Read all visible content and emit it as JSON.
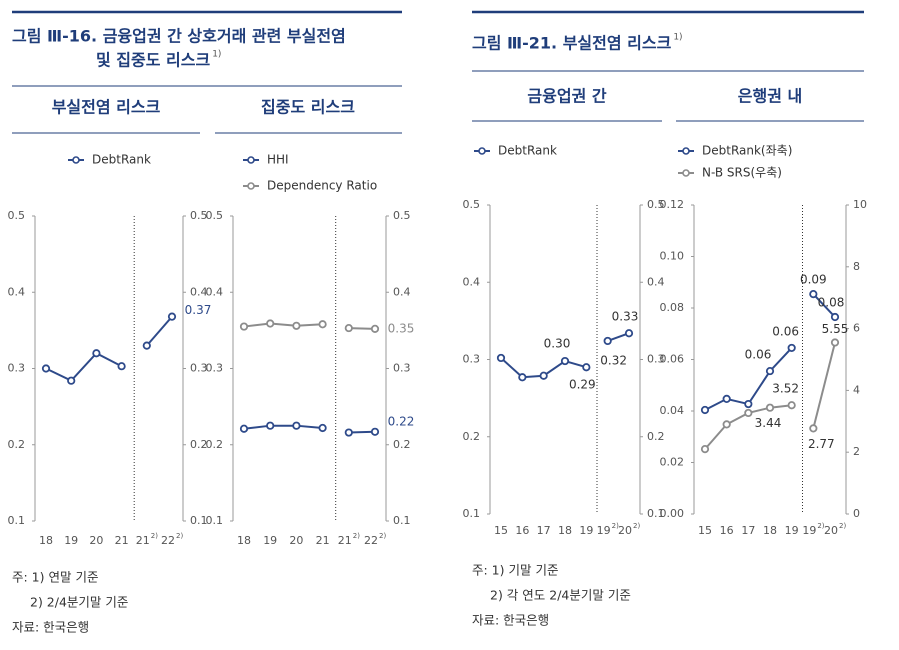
{
  "figures": [
    {
      "title_lines": [
        "그림 Ⅲ-16. 금융업권 간 상호거래 관련 부실전염",
        "및 집중도 리스크"
      ],
      "title_note": "1)",
      "notes": [
        "주: 1) 연말 기준",
        "2) 2/4분기말 기준",
        "자료: 한국은행"
      ]
    },
    {
      "title_lines": [
        "그림 Ⅲ-21. 부실전염 리스크"
      ],
      "title_note": "1)",
      "notes": [
        "주: 1) 기말 기준",
        "2) 각 연도 2/4분기말 기준",
        "자료: 한국은행"
      ]
    }
  ],
  "chart_data": [
    {
      "type": "line",
      "title": "부실전염 리스크",
      "categories": [
        "18",
        "19",
        "20",
        "21",
        "21",
        "22"
      ],
      "category_notes": [
        null,
        null,
        null,
        null,
        "2)",
        "2)"
      ],
      "divider_after": 3,
      "ylim": [
        0.1,
        0.5
      ],
      "yticks": [
        0.1,
        0.2,
        0.3,
        0.4,
        0.5
      ],
      "y2lim": [
        0.1,
        0.5
      ],
      "y2ticks": [
        0.1,
        0.2,
        0.3,
        0.4,
        0.5
      ],
      "series": [
        {
          "name": "DebtRank",
          "color": "#2e4a8a",
          "values": [
            0.3,
            0.284,
            0.32,
            0.303,
            0.33,
            0.368
          ],
          "value_labels": [
            null,
            null,
            null,
            null,
            null,
            "0.37"
          ]
        }
      ]
    },
    {
      "type": "line",
      "title": "집중도 리스크",
      "categories": [
        "18",
        "19",
        "20",
        "21",
        "21",
        "22"
      ],
      "category_notes": [
        null,
        null,
        null,
        null,
        "2)",
        "2)"
      ],
      "divider_after": 3,
      "ylim": [
        0.1,
        0.5
      ],
      "yticks": [
        0.1,
        0.2,
        0.3,
        0.4,
        0.5
      ],
      "y2lim": [
        0.1,
        0.5
      ],
      "y2ticks": [
        0.1,
        0.2,
        0.3,
        0.4,
        0.5
      ],
      "series": [
        {
          "name": "HHI",
          "color": "#2e4a8a",
          "values": [
            0.221,
            0.225,
            0.225,
            0.222,
            0.216,
            0.217
          ],
          "value_labels": [
            null,
            null,
            null,
            null,
            null,
            "0.22"
          ]
        },
        {
          "name": "Dependency Ratio",
          "color": "#8c8c8c",
          "values": [
            0.355,
            0.359,
            0.356,
            0.358,
            0.353,
            0.352
          ],
          "value_labels": [
            null,
            null,
            null,
            null,
            null,
            "0.35"
          ]
        }
      ]
    },
    {
      "type": "line",
      "title": "금융업권 간",
      "categories": [
        "15",
        "16",
        "17",
        "18",
        "19",
        "19",
        "20"
      ],
      "category_notes": [
        null,
        null,
        null,
        null,
        null,
        "2)",
        "2)"
      ],
      "divider_after": 4,
      "ylim": [
        0.1,
        0.5
      ],
      "yticks": [
        0.1,
        0.2,
        0.3,
        0.4,
        0.5
      ],
      "y2lim": [
        0.1,
        0.5
      ],
      "y2ticks": [
        0.1,
        0.2,
        0.3,
        0.4,
        0.5
      ],
      "series": [
        {
          "name": "DebtRank",
          "color": "#2e4a8a",
          "values": [
            0.302,
            0.277,
            0.279,
            0.298,
            0.29,
            0.324,
            0.334
          ],
          "value_labels": [
            null,
            null,
            null,
            "0.30",
            "0.29",
            "0.32",
            "0.33"
          ]
        }
      ]
    },
    {
      "type": "line",
      "title": "은행권 내",
      "categories": [
        "15",
        "16",
        "17",
        "18",
        "19",
        "19",
        "20"
      ],
      "category_notes": [
        null,
        null,
        null,
        null,
        null,
        "2)",
        "2)"
      ],
      "divider_after": 4,
      "ylim": [
        0,
        0.12
      ],
      "yticks": [
        {
          "value": 0,
          "label": "0.00"
        },
        0.02,
        0.04,
        0.06,
        0.08,
        {
          "value": 0.1,
          "label": "0.10"
        },
        0.12
      ],
      "y2lim": [
        0,
        10
      ],
      "y2ticks": [
        0,
        2,
        4,
        6,
        8,
        10
      ],
      "series": [
        {
          "name": "DebtRank(좌축)",
          "color": "#2e4a8a",
          "values": [
            0.0404,
            0.0447,
            0.0427,
            0.0555,
            0.0645,
            0.0854,
            0.0765
          ],
          "value_labels": [
            null,
            null,
            null,
            "0.06",
            "0.06",
            "0.09",
            "0.08"
          ]
        },
        {
          "name": "N-B SRS(우축)",
          "color": "#8c8c8c",
          "axis": "y2",
          "values": [
            2.1,
            2.9,
            3.27,
            3.44,
            3.52,
            2.77,
            5.55
          ],
          "value_labels": [
            null,
            null,
            null,
            "3.44",
            "3.52",
            "2.77",
            "5.55"
          ]
        }
      ]
    }
  ]
}
